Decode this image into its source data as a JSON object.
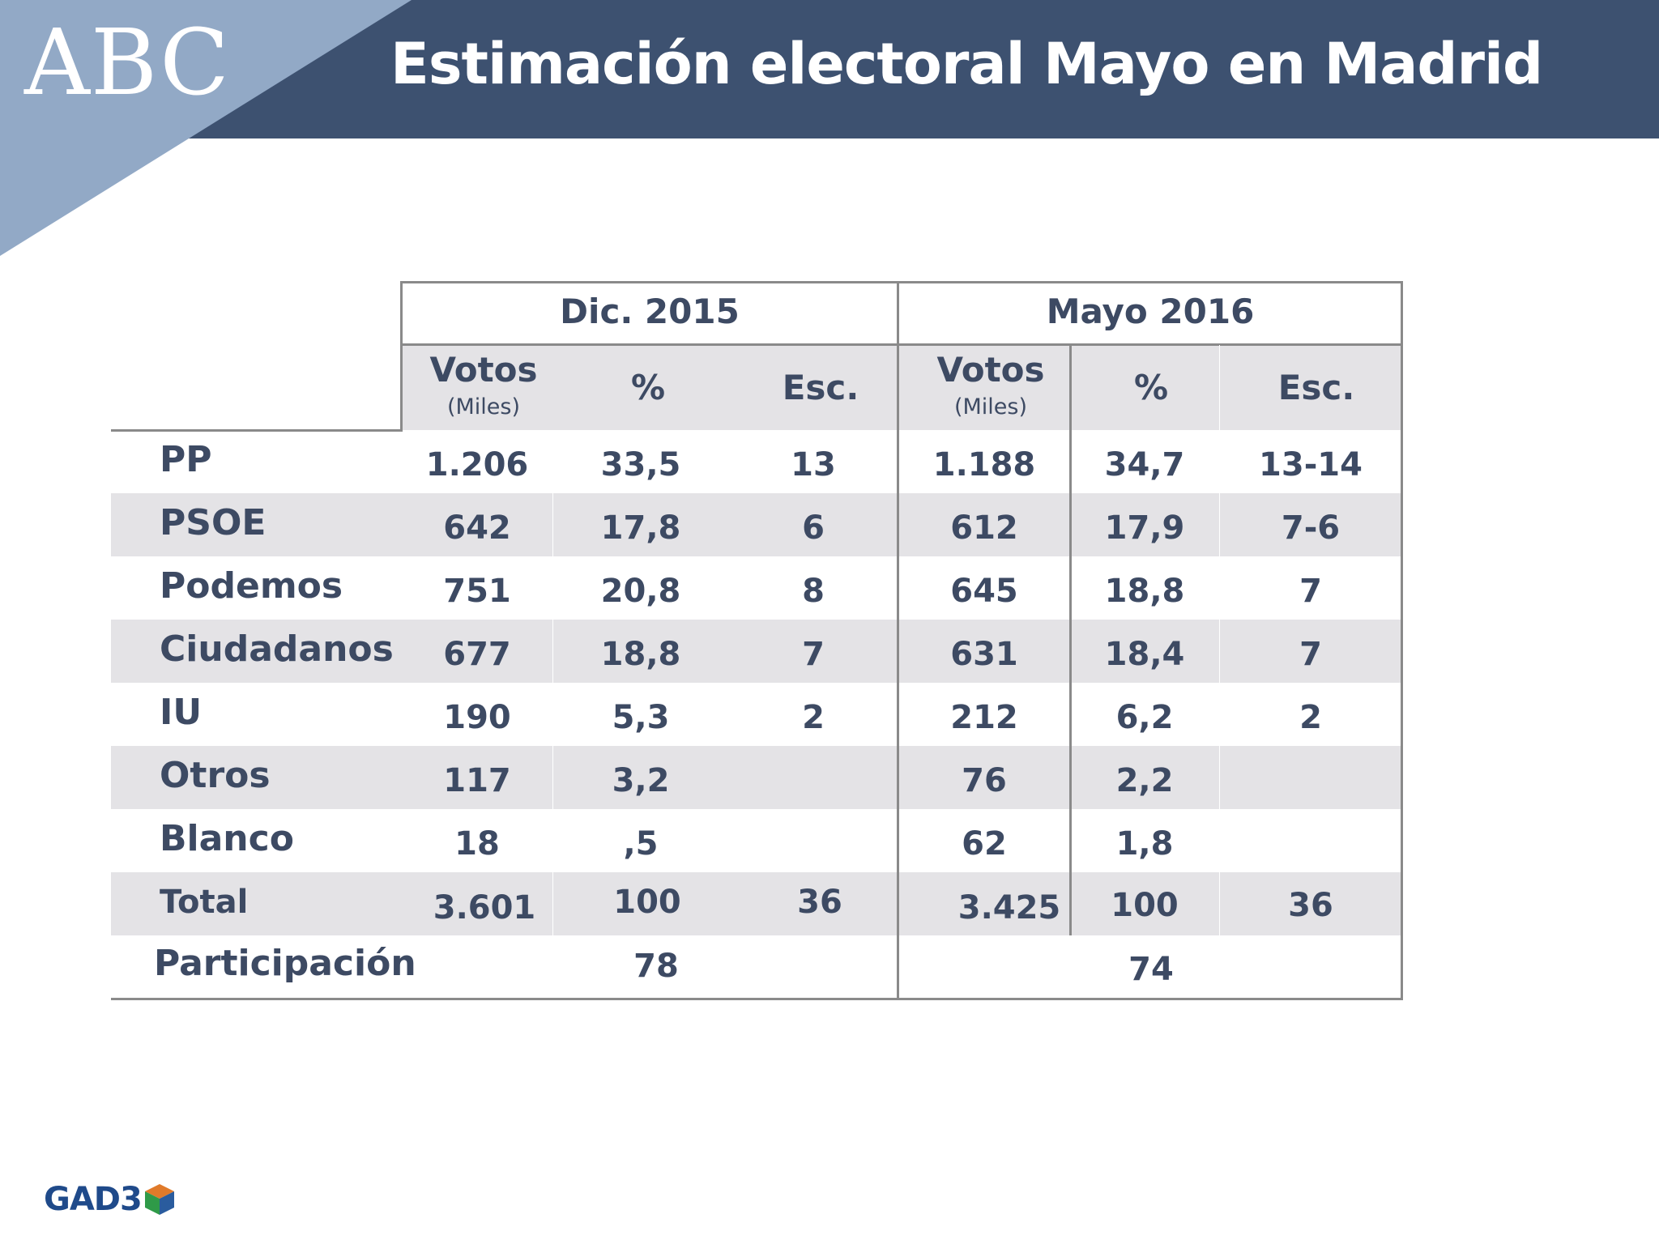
{
  "header": {
    "logo": "ABC",
    "title": "Estimación electoral Mayo en Madrid"
  },
  "colors": {
    "header_band": "#3d5170",
    "header_corner": "#92a9c6",
    "row_band": "#e4e3e6",
    "text": "#3d4a63",
    "footer_logo": "#1f4a8a"
  },
  "table": {
    "groups": [
      "Dic. 2015",
      "Mayo 2016"
    ],
    "columns": {
      "votos": "Votos",
      "votos_unit": "(Miles)",
      "pct": "%",
      "esc": "Esc."
    },
    "rows": [
      {
        "party": "PP",
        "v1": "1.206",
        "p1": "33,5",
        "e1": "13",
        "v2": "1.188",
        "p2": "34,7",
        "e2": "13-14"
      },
      {
        "party": "PSOE",
        "v1": "642",
        "p1": "17,8",
        "e1": "6",
        "v2": "612",
        "p2": "17,9",
        "e2": "7-6"
      },
      {
        "party": "Podemos",
        "v1": "751",
        "p1": "20,8",
        "e1": "8",
        "v2": "645",
        "p2": "18,8",
        "e2": "7"
      },
      {
        "party": "Ciudadanos",
        "v1": "677",
        "p1": "18,8",
        "e1": "7",
        "v2": "631",
        "p2": "18,4",
        "e2": "7"
      },
      {
        "party": "IU",
        "v1": "190",
        "p1": "5,3",
        "e1": "2",
        "v2": "212",
        "p2": "6,2",
        "e2": "2"
      },
      {
        "party": "Otros",
        "v1": "117",
        "p1": "3,2",
        "e1": "",
        "v2": "76",
        "p2": "2,2",
        "e2": ""
      },
      {
        "party": "Blanco",
        "v1": "18",
        "p1": ",5",
        "e1": "",
        "v2": "62",
        "p2": "1,8",
        "e2": ""
      },
      {
        "party": "Total",
        "v1": "3.601",
        "p1": "100",
        "e1": "36",
        "v2": "3.425",
        "p2": "100",
        "e2": "36"
      }
    ],
    "participation": {
      "label": "Participación",
      "dic2015": "78",
      "mayo2016": "74"
    }
  },
  "footer": {
    "logo_text": "GAD3",
    "logo_icon": "cube-icon"
  }
}
